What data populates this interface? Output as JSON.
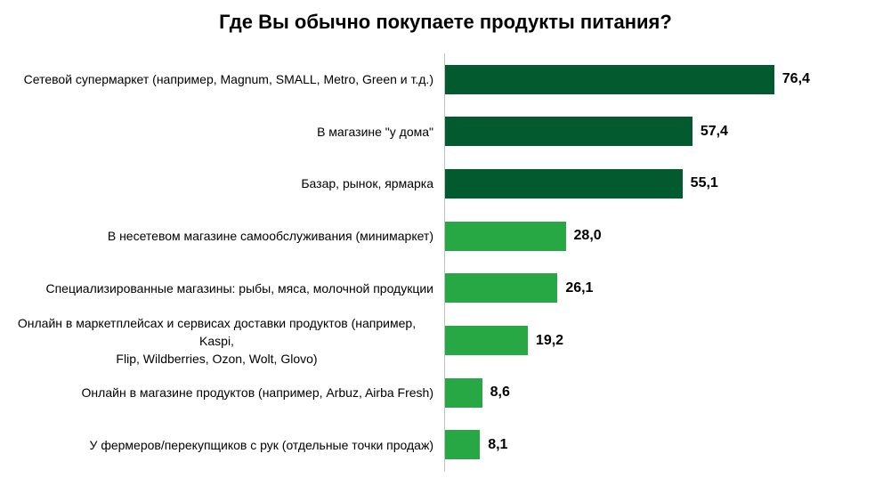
{
  "chart_data": {
    "type": "bar",
    "orientation": "horizontal",
    "title": "Где Вы обычно покупаете продукты питания?",
    "categories": [
      "Сетевой супермаркет (например, Magnum, SMALL, Metro, Green и т.д.)",
      "В магазине \"у дома\"",
      "Базар, рынок, ярмарка",
      "В несетевом магазине самообслуживания (минимаркет)",
      "Специализированные магазины: рыбы, мяса, молочной продукции",
      "Онлайн в маркетплейсах и сервисах доставки продуктов (например, Kaspi,\nFlip, Wildberries, Ozon, Wolt, Glovo)",
      "Онлайн в магазине продуктов (например, Arbuz, Airba Fresh)",
      "У фермеров/перекупщиков с рук (отдельные точки продаж)"
    ],
    "values": [
      76.4,
      57.4,
      55.1,
      28.0,
      26.1,
      19.2,
      8.6,
      8.1
    ],
    "value_labels": [
      "76,4",
      "57,4",
      "55,1",
      "28,0",
      "26,1",
      "19,2",
      "8,6",
      "8,1"
    ],
    "colors": [
      "#035a2f",
      "#035a2f",
      "#035a2f",
      "#27a844",
      "#27a844",
      "#27a844",
      "#27a844",
      "#27a844"
    ]
  }
}
